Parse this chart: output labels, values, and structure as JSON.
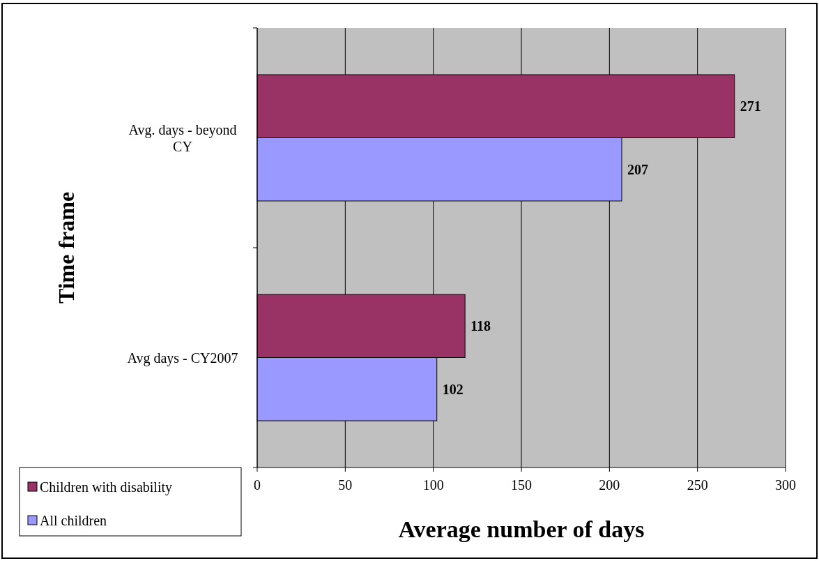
{
  "chart_data": {
    "type": "bar",
    "orientation": "horizontal",
    "xlabel": "Average number of days",
    "ylabel": "Time frame",
    "categories": [
      "Avg. days - beyond CY",
      "Avg days - CY2007"
    ],
    "series": [
      {
        "name": "Children with disability",
        "color": "#993366",
        "values": [
          271,
          118
        ]
      },
      {
        "name": "All children",
        "color": "#9999ff",
        "values": [
          207,
          102
        ]
      }
    ],
    "xlim": [
      0,
      300
    ],
    "xticks": [
      0,
      50,
      100,
      150,
      200,
      250,
      300
    ],
    "grid": "x",
    "legend": "bottom left",
    "data_labels": true
  }
}
